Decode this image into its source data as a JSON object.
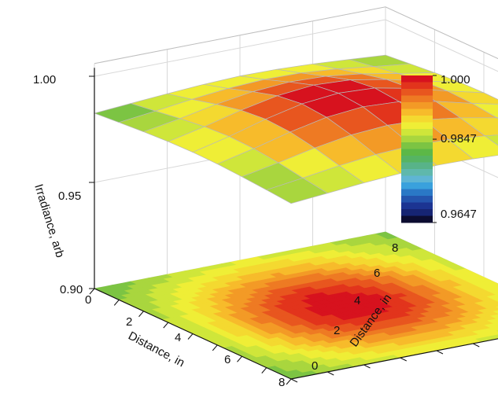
{
  "chart_data": {
    "type": "surface3d-with-contour",
    "x_axis": {
      "label": "Distance, in",
      "range": [
        0,
        8
      ],
      "ticks": [
        "0",
        "2",
        "4",
        "6",
        "8"
      ]
    },
    "y_axis": {
      "label": "Distance, in",
      "range": [
        0,
        8
      ],
      "ticks": [
        "0",
        "2",
        "4",
        "6",
        "8"
      ]
    },
    "z_axis": {
      "label": "Irradiance, arb",
      "range": [
        0.9,
        1.0
      ],
      "ticks": [
        "0.90",
        "0.95",
        "1.00"
      ]
    },
    "colorbar": {
      "labels": [
        "1.000",
        "0.9847",
        "0.9647"
      ],
      "min": 0.9647,
      "max": 1.0,
      "colors": [
        "#d7121e",
        "#e2341c",
        "#e8561f",
        "#ee7a23",
        "#f39a26",
        "#f7bb2b",
        "#f4d930",
        "#efee36",
        "#cfe63a",
        "#a9d63e",
        "#7cc443",
        "#5cb847",
        "#56b463",
        "#58b389",
        "#5fb8ac",
        "#5fb5d4",
        "#3aa1dd",
        "#2a78c6",
        "#2454ad",
        "#1c3492",
        "#162473",
        "#0c0c30"
      ]
    },
    "grid_x": [
      0,
      1,
      2,
      3,
      4,
      5,
      6,
      7,
      8
    ],
    "grid_y": [
      0,
      1,
      2,
      3,
      4,
      5,
      6,
      7,
      8
    ],
    "z": [
      [
        0.9826,
        0.9839,
        0.9851,
        0.9862,
        0.9868,
        0.9866,
        0.9858,
        0.9846,
        0.9833
      ],
      [
        0.9836,
        0.9856,
        0.9878,
        0.9896,
        0.9905,
        0.9902,
        0.9888,
        0.9866,
        0.9845
      ],
      [
        0.9845,
        0.9874,
        0.9908,
        0.9934,
        0.9946,
        0.994,
        0.9918,
        0.9886,
        0.9857
      ],
      [
        0.9852,
        0.9889,
        0.9933,
        0.9968,
        0.9985,
        0.9976,
        0.9945,
        0.9903,
        0.9866
      ],
      [
        0.9855,
        0.9896,
        0.9944,
        0.9983,
        1.0,
        0.9991,
        0.9956,
        0.991,
        0.9869
      ],
      [
        0.9853,
        0.9892,
        0.9937,
        0.9973,
        0.9989,
        0.998,
        0.9948,
        0.9905,
        0.9867
      ],
      [
        0.9846,
        0.9879,
        0.9915,
        0.9943,
        0.9955,
        0.9948,
        0.9924,
        0.9891,
        0.9859
      ],
      [
        0.9837,
        0.986,
        0.9885,
        0.9904,
        0.9913,
        0.9908,
        0.9892,
        0.987,
        0.9848
      ],
      [
        0.9827,
        0.9842,
        0.9857,
        0.9868,
        0.9873,
        0.987,
        0.9861,
        0.985,
        0.9836
      ]
    ]
  }
}
